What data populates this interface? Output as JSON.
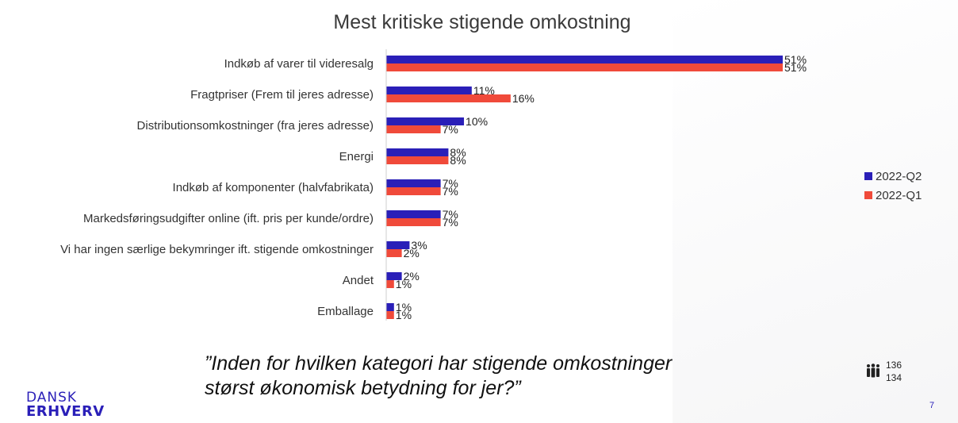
{
  "title": "Mest kritiske stigende omkostning",
  "question_line1": "”Inden for hvilken kategori har stigende omkostninger",
  "question_line2": "størst økonomisk betydning for jer?”",
  "respondents": {
    "q2": "136",
    "q1": "134"
  },
  "logo": {
    "line1": "DANSK",
    "line2": "ERHVERV"
  },
  "page_number": "7",
  "colors": {
    "q2": "#2a1fb8",
    "q1": "#f04a3a"
  },
  "icons": [
    "people-icon"
  ],
  "chart_data": {
    "type": "bar",
    "orientation": "horizontal",
    "title": "Mest kritiske stigende omkostning",
    "categories": [
      "Indkøb af varer til videresalg",
      "Fragtpriser (Frem til jeres adresse)",
      "Distributionsomkostninger (fra jeres adresse)",
      "Energi",
      "Indkøb af komponenter (halvfabrikata)",
      "Markedsføringsudgifter online (ift. pris per kunde/ordre)",
      "Vi har ingen særlige bekymringer ift. stigende omkostninger",
      "Andet",
      "Emballage"
    ],
    "series": [
      {
        "name": "2022-Q2",
        "color": "#2a1fb8",
        "values": [
          51,
          11,
          10,
          8,
          7,
          7,
          3,
          2,
          1
        ],
        "labels": [
          "51%",
          "11%",
          "10%",
          "8%",
          "7%",
          "7%",
          "3%",
          "2%",
          "1%"
        ]
      },
      {
        "name": "2022-Q1",
        "color": "#f04a3a",
        "values": [
          51,
          16,
          7,
          8,
          7,
          7,
          2,
          1,
          1
        ],
        "labels": [
          "51%",
          "16%",
          "7%",
          "8%",
          "7%",
          "7%",
          "2%",
          "1%",
          "1%"
        ]
      }
    ],
    "legend_position": "right",
    "xlim": [
      0,
      51
    ],
    "grid": false
  }
}
